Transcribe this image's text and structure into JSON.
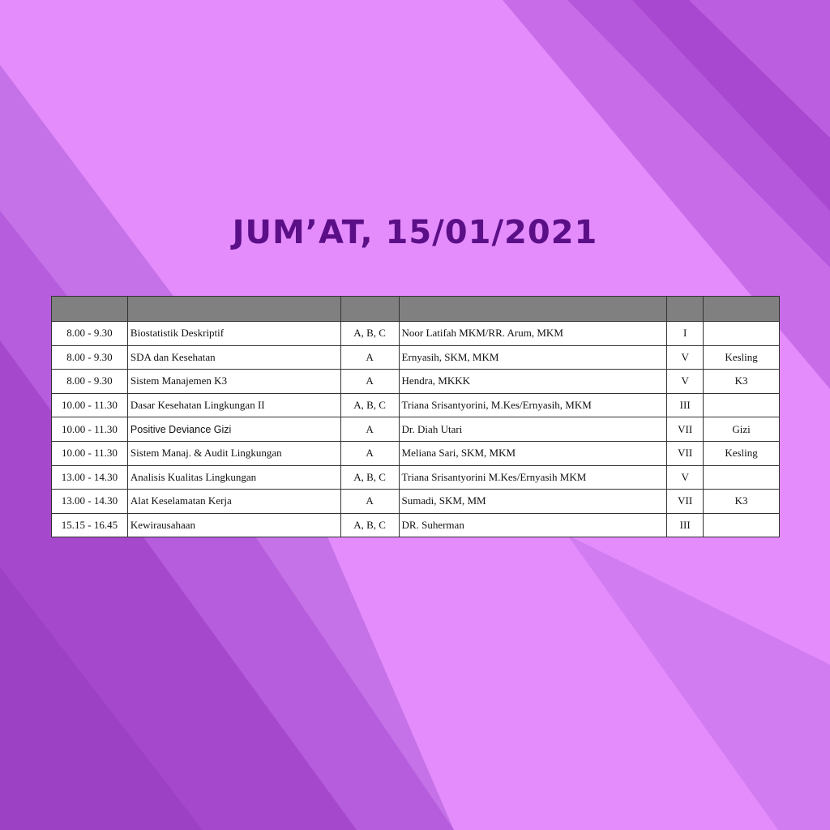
{
  "title": "JUM’AT, 15/01/2021",
  "colors": {
    "background": "#e48cfc",
    "stripe_dark": "#a84ad0",
    "title": "#5b0f87",
    "header": "#808080"
  },
  "rows": [
    {
      "time": "8.00 - 9.30",
      "course": "Biostatistik Deskriptif",
      "class": "A, B, C",
      "lecturer": "Noor Latifah MKM/RR. Arum, MKM",
      "semester": "I",
      "program": ""
    },
    {
      "time": "8.00 - 9.30",
      "course": "SDA dan Kesehatan",
      "class": "A",
      "lecturer": "Ernyasih, SKM, MKM",
      "semester": "V",
      "program": "Kesling"
    },
    {
      "time": "8.00 - 9.30",
      "course": "Sistem Manajemen K3",
      "class": "A",
      "lecturer": "Hendra, MKKK",
      "semester": "V",
      "program": "K3"
    },
    {
      "time": "10.00 - 11.30",
      "course": "Dasar Kesehatan Lingkungan II",
      "class": "A, B, C",
      "lecturer": "Triana Srisantyorini, M.Kes/Ernyasih, MKM",
      "semester": "III",
      "program": ""
    },
    {
      "time": "10.00 - 11.30",
      "course": "Positive Deviance  Gizi",
      "class": "A",
      "lecturer": "Dr. Diah Utari",
      "semester": "VII",
      "program": "Gizi"
    },
    {
      "time": "10.00 - 11.30",
      "course": "Sistem Manaj. & Audit Lingkungan",
      "class": "A",
      "lecturer": "Meliana Sari, SKM, MKM",
      "semester": "VII",
      "program": "Kesling"
    },
    {
      "time": "13.00 -  14.30",
      "course": "Analisis Kualitas Lingkungan",
      "class": "A, B, C",
      "lecturer": "Triana Srisantyorini M.Kes/Ernyasih MKM",
      "semester": "V",
      "program": ""
    },
    {
      "time": "13.00 -  14.30",
      "course": "Alat Keselamatan Kerja",
      "class": "A",
      "lecturer": "Sumadi, SKM, MM",
      "semester": "VII",
      "program": "K3"
    },
    {
      "time": "15.15 - 16.45",
      "course": "Kewirausahaan",
      "class": "A, B, C",
      "lecturer": "DR. Suherman",
      "semester": "III",
      "program": ""
    }
  ]
}
